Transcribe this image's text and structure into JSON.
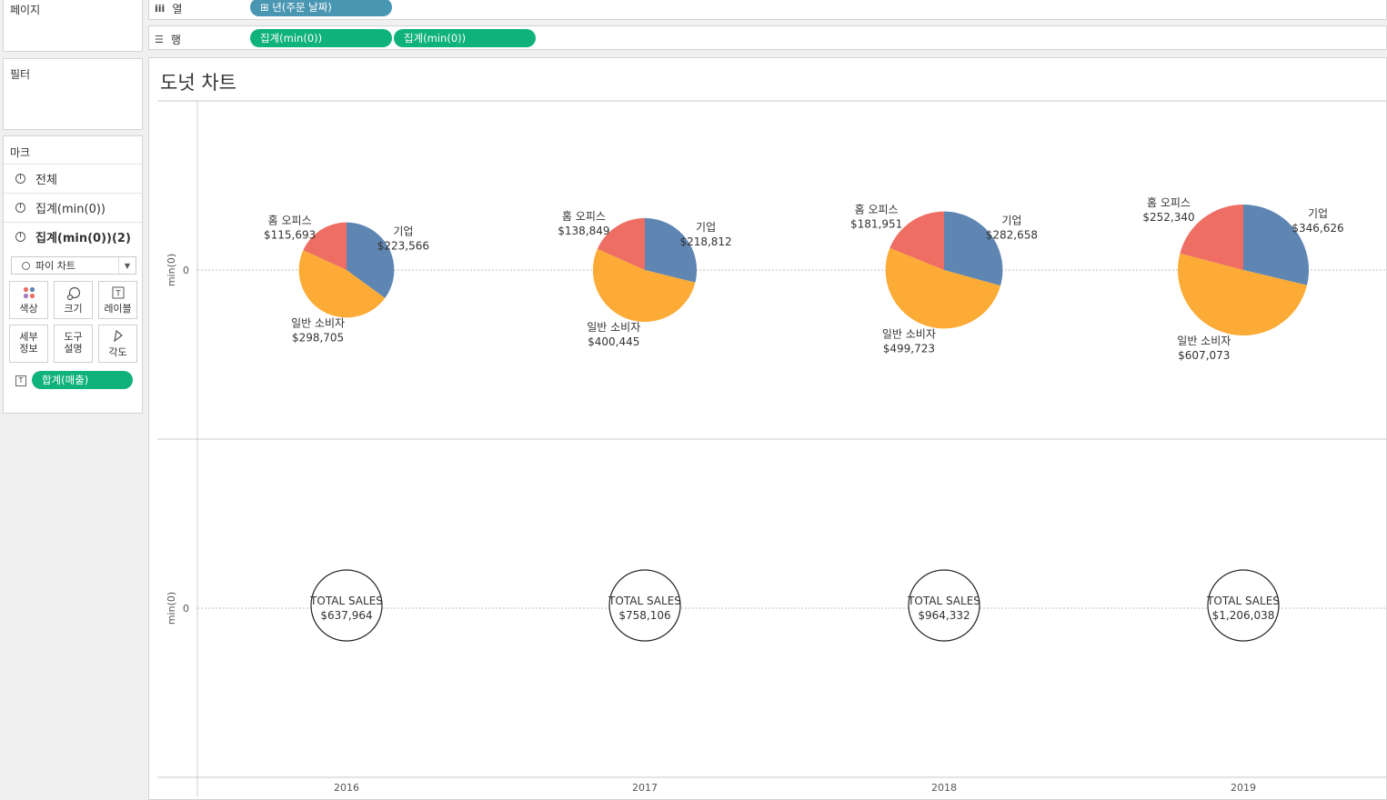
{
  "sidebar": {
    "pages_title": "페이지",
    "filters_title": "필터",
    "marks": {
      "title": "마크",
      "rows": [
        "전체",
        "집계(min(0))",
        "집계(min(0))(2)"
      ],
      "mark_type": "파이 차트",
      "buttons": {
        "color": "색상",
        "size": "크기",
        "label": "레이블",
        "detail": [
          "세부",
          "정보"
        ],
        "tooltip": [
          "도구",
          "설명"
        ],
        "angle": "각도"
      },
      "label_pill": "합계(매출)",
      "label_icon": "T"
    }
  },
  "shelves": {
    "columns_label": "열",
    "columns_pills": [
      "⊞ 년(주문 날짜)"
    ],
    "rows_label": "행",
    "rows_pills": [
      "집계(min(0))",
      "집계(min(0))"
    ]
  },
  "view": {
    "title": "도넛 차트"
  },
  "colors": {
    "기업": "#5f86b3",
    "일반 소비자": "#fbab36",
    "홈 오피스": "#ee6e64",
    "green_pill": "#10b27c",
    "blue_pill": "#4996b2"
  },
  "chart_data": {
    "type": "pie",
    "years": [
      "2016",
      "2017",
      "2018",
      "2019"
    ],
    "axis_label": "min(0)",
    "axis_tick": "0",
    "segments": [
      "기업",
      "일반 소비자",
      "홈 오피스"
    ],
    "pies": [
      {
        "year": "2016",
        "values": {
          "기업": 223566,
          "일반 소비자": 298705,
          "홈 오피스": 115693
        },
        "labels": {
          "기업": "$223,566",
          "일반 소비자": "$298,705",
          "홈 오피스": "$115,693"
        },
        "total_label": "TOTAL SALES",
        "total": "$637,964"
      },
      {
        "year": "2017",
        "values": {
          "기업": 218812,
          "일반 소비자": 400445,
          "홈 오피스": 138849
        },
        "labels": {
          "기업": "$218,812",
          "일반 소비자": "$400,445",
          "홈 오피스": "$138,849"
        },
        "total_label": "TOTAL SALES",
        "total": "$758,106"
      },
      {
        "year": "2018",
        "values": {
          "기업": 282658,
          "일반 소비자": 499723,
          "홈 오피스": 181951
        },
        "labels": {
          "기업": "$282,658",
          "일반 소비자": "$499,723",
          "홈 오피스": "$181,951"
        },
        "total_label": "TOTAL SALES",
        "total": "$964,332"
      },
      {
        "year": "2019",
        "values": {
          "기업": 346626,
          "일반 소비자": 607073,
          "홈 오피스": 252340
        },
        "labels": {
          "기업": "$346,626",
          "일반 소비자": "$607,073",
          "홈 오피스": "$252,340"
        },
        "total_label": "TOTAL SALES",
        "total": "$1,206,038"
      }
    ]
  }
}
